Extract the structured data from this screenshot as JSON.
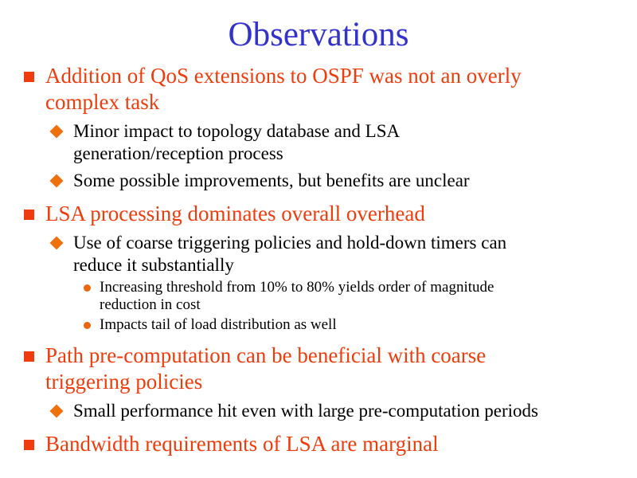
{
  "slide": {
    "title": "Observations",
    "colors": {
      "background": "#FFFFFF",
      "title": "#3333CC",
      "level1_text": "#EE3C0C",
      "bullet_square": "#EE3C0C",
      "bullet_diamond": "#F1700E",
      "bullet_circle": "#ED650C",
      "body_text": "#000000"
    },
    "bullets": [
      {
        "level": 1,
        "text": "Addition of QoS extensions to OSPF was not an overly\ncomplex task"
      },
      {
        "level": 2,
        "text": "Minor impact to topology database and LSA\ngeneration/reception process"
      },
      {
        "level": 2,
        "text": "Some possible improvements, but benefits are unclear"
      },
      {
        "level": 1,
        "text": "LSA processing dominates overall overhead"
      },
      {
        "level": 2,
        "text": "Use of coarse triggering policies and hold-down timers can\nreduce it substantially"
      },
      {
        "level": 3,
        "text": "Increasing threshold from 10% to 80% yields order of magnitude\nreduction in cost"
      },
      {
        "level": 3,
        "text": "Impacts tail of load distribution as well"
      },
      {
        "level": 1,
        "text": "Path pre-computation can be beneficial with coarse\ntriggering policies"
      },
      {
        "level": 2,
        "text": "Small performance hit even with large pre-computation periods"
      },
      {
        "level": 1,
        "text": "Bandwidth requirements of LSA are marginal"
      }
    ]
  }
}
